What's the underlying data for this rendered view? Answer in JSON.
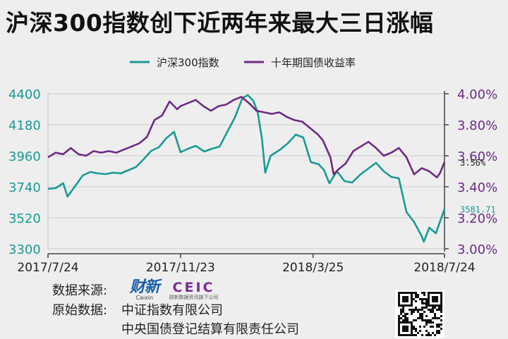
{
  "title": "沪深300指数创下近两年来最大三日涨幅",
  "legend": [
    {
      "name": "沪深300指数",
      "color": "#1a9a95"
    },
    {
      "name": "十年期国债收益率",
      "color": "#6d2a83"
    }
  ],
  "footer": {
    "source_label": "数据来源:",
    "caixin_logo": "财新",
    "caixin_sub": "Caixin",
    "ceic_logo": "CEIC",
    "ceic_sub": "财新数据资讯旗下公司",
    "raw_label": "原始数据:",
    "raw_line1": "中证指数有限公司",
    "raw_line2": "中央国债登记结算有限责任公司"
  },
  "chart_data": {
    "type": "line",
    "x_ticks": [
      "2017/7/24",
      "2017/11/23",
      "2018/3/25",
      "2018/7/24"
    ],
    "y_left": {
      "ticks": [
        "4400",
        "4180",
        "3960",
        "3740",
        "3520",
        "3300"
      ],
      "range": [
        3300,
        4400
      ]
    },
    "y_right": {
      "ticks": [
        "4.00%",
        "3.80%",
        "3.60%",
        "3.40%",
        "3.20%",
        "3.00%"
      ],
      "range": [
        3.0,
        4.0
      ]
    },
    "end_labels": {
      "csi300": "3581.71",
      "bond": "3.56%"
    },
    "grid": true,
    "legend_position": "top",
    "series": [
      {
        "name": "沪深300指数",
        "axis": "left",
        "color": "#1a9a95",
        "points": [
          [
            "2017-07-24",
            3725
          ],
          [
            "2017-07-31",
            3730
          ],
          [
            "2017-08-07",
            3765
          ],
          [
            "2017-08-11",
            3670
          ],
          [
            "2017-08-18",
            3745
          ],
          [
            "2017-08-25",
            3820
          ],
          [
            "2017-09-01",
            3845
          ],
          [
            "2017-09-08",
            3835
          ],
          [
            "2017-09-15",
            3830
          ],
          [
            "2017-09-22",
            3840
          ],
          [
            "2017-09-29",
            3835
          ],
          [
            "2017-10-13",
            3880
          ],
          [
            "2017-10-20",
            3935
          ],
          [
            "2017-10-27",
            3995
          ],
          [
            "2017-11-03",
            4020
          ],
          [
            "2017-11-10",
            4085
          ],
          [
            "2017-11-17",
            4130
          ],
          [
            "2017-11-23",
            3985
          ],
          [
            "2017-11-30",
            4010
          ],
          [
            "2017-12-07",
            4030
          ],
          [
            "2017-12-15",
            3990
          ],
          [
            "2017-12-22",
            4010
          ],
          [
            "2017-12-29",
            4025
          ],
          [
            "2018-01-05",
            4130
          ],
          [
            "2018-01-12",
            4230
          ],
          [
            "2018-01-19",
            4370
          ],
          [
            "2018-01-24",
            4390
          ],
          [
            "2018-01-29",
            4350
          ],
          [
            "2018-02-02",
            4270
          ],
          [
            "2018-02-06",
            4080
          ],
          [
            "2018-02-09",
            3840
          ],
          [
            "2018-02-14",
            3960
          ],
          [
            "2018-02-23",
            4005
          ],
          [
            "2018-03-02",
            4050
          ],
          [
            "2018-03-09",
            4110
          ],
          [
            "2018-03-16",
            4090
          ],
          [
            "2018-03-23",
            3915
          ],
          [
            "2018-03-30",
            3900
          ],
          [
            "2018-04-04",
            3860
          ],
          [
            "2018-04-09",
            3765
          ],
          [
            "2018-04-16",
            3850
          ],
          [
            "2018-04-23",
            3780
          ],
          [
            "2018-04-30",
            3770
          ],
          [
            "2018-05-08",
            3830
          ],
          [
            "2018-05-15",
            3870
          ],
          [
            "2018-05-22",
            3910
          ],
          [
            "2018-05-29",
            3850
          ],
          [
            "2018-06-05",
            3810
          ],
          [
            "2018-06-12",
            3800
          ],
          [
            "2018-06-19",
            3560
          ],
          [
            "2018-06-26",
            3490
          ],
          [
            "2018-07-03",
            3390
          ],
          [
            "2018-07-05",
            3350
          ],
          [
            "2018-07-10",
            3450
          ],
          [
            "2018-07-16",
            3410
          ],
          [
            "2018-07-24",
            3582
          ]
        ]
      },
      {
        "name": "十年期国债收益率",
        "axis": "right",
        "color": "#6d2a83",
        "points": [
          [
            "2017-07-24",
            3.59
          ],
          [
            "2017-07-31",
            3.62
          ],
          [
            "2017-08-07",
            3.61
          ],
          [
            "2017-08-14",
            3.65
          ],
          [
            "2017-08-21",
            3.61
          ],
          [
            "2017-08-28",
            3.6
          ],
          [
            "2017-09-04",
            3.63
          ],
          [
            "2017-09-11",
            3.62
          ],
          [
            "2017-09-18",
            3.63
          ],
          [
            "2017-09-25",
            3.62
          ],
          [
            "2017-10-09",
            3.66
          ],
          [
            "2017-10-16",
            3.68
          ],
          [
            "2017-10-23",
            3.72
          ],
          [
            "2017-10-30",
            3.83
          ],
          [
            "2017-11-06",
            3.86
          ],
          [
            "2017-11-13",
            3.95
          ],
          [
            "2017-11-20",
            3.9
          ],
          [
            "2017-11-23",
            3.92
          ],
          [
            "2017-11-30",
            3.94
          ],
          [
            "2017-12-07",
            3.96
          ],
          [
            "2017-12-14",
            3.92
          ],
          [
            "2017-12-21",
            3.89
          ],
          [
            "2017-12-28",
            3.92
          ],
          [
            "2018-01-04",
            3.93
          ],
          [
            "2018-01-11",
            3.96
          ],
          [
            "2018-01-18",
            3.98
          ],
          [
            "2018-01-25",
            3.94
          ],
          [
            "2018-02-01",
            3.89
          ],
          [
            "2018-02-08",
            3.88
          ],
          [
            "2018-02-15",
            3.87
          ],
          [
            "2018-02-22",
            3.88
          ],
          [
            "2018-03-01",
            3.85
          ],
          [
            "2018-03-08",
            3.83
          ],
          [
            "2018-03-15",
            3.82
          ],
          [
            "2018-03-22",
            3.78
          ],
          [
            "2018-03-29",
            3.74
          ],
          [
            "2018-04-03",
            3.7
          ],
          [
            "2018-04-10",
            3.59
          ],
          [
            "2018-04-13",
            3.48
          ],
          [
            "2018-04-17",
            3.51
          ],
          [
            "2018-04-24",
            3.55
          ],
          [
            "2018-05-01",
            3.63
          ],
          [
            "2018-05-08",
            3.66
          ],
          [
            "2018-05-15",
            3.69
          ],
          [
            "2018-05-22",
            3.65
          ],
          [
            "2018-05-29",
            3.6
          ],
          [
            "2018-06-05",
            3.62
          ],
          [
            "2018-06-12",
            3.65
          ],
          [
            "2018-06-19",
            3.59
          ],
          [
            "2018-06-26",
            3.48
          ],
          [
            "2018-07-03",
            3.52
          ],
          [
            "2018-07-10",
            3.5
          ],
          [
            "2018-07-17",
            3.46
          ],
          [
            "2018-07-20",
            3.49
          ],
          [
            "2018-07-24",
            3.56
          ]
        ]
      }
    ]
  }
}
